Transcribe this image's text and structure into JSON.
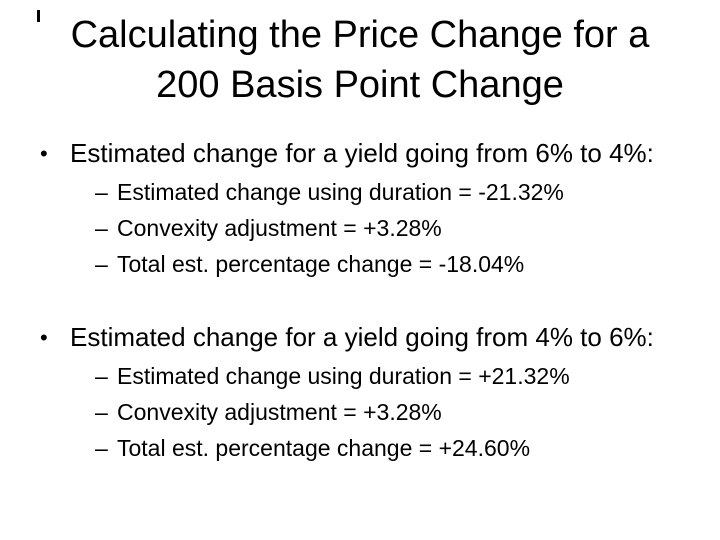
{
  "slide": {
    "background_color": "#ffffff",
    "text_color": "#000000",
    "title": {
      "line1": "Calculating the Price Change for a",
      "line2": "200 Basis Point Change"
    },
    "bullet_glyph": "•",
    "sub_bullet_glyph": "–",
    "bullets": [
      {
        "text": "Estimated change for a yield going from 6% to 4%:",
        "sub": [
          "Estimated change using duration = -21.32%",
          "Convexity adjustment = +3.28%",
          "Total est. percentage change = -18.04%"
        ]
      },
      {
        "text": "Estimated change for a yield going from 4% to 6%:",
        "sub": [
          "Estimated change using duration = +21.32%",
          "Convexity adjustment = +3.28%",
          "Total est. percentage change = +24.60%"
        ]
      }
    ]
  }
}
